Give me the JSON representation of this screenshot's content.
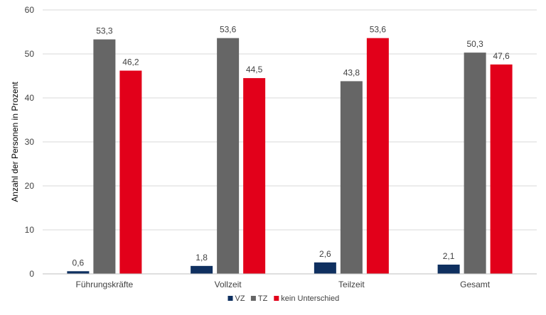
{
  "chart_data": {
    "type": "bar",
    "title": "",
    "xlabel": "",
    "ylabel": "Anzahl der Personen in Prozent",
    "ylim": [
      0,
      60
    ],
    "yticks": [
      "0",
      "10",
      "20",
      "30",
      "40",
      "50",
      "60"
    ],
    "grid": true,
    "legend_position": "bottom",
    "categories": [
      "Führungskräfte",
      "Vollzeit",
      "Teilzeit",
      "Gesamt"
    ],
    "series": [
      {
        "name": "VZ",
        "color": "#0f3060",
        "values": [
          0.6,
          1.8,
          2.6,
          2.1
        ],
        "labels": [
          "0,6",
          "1,8",
          "2,6",
          "2,1"
        ]
      },
      {
        "name": "TZ",
        "color": "#666666",
        "values": [
          53.3,
          53.6,
          43.8,
          50.3
        ],
        "labels": [
          "53,3",
          "53,6",
          "43,8",
          "50,3"
        ]
      },
      {
        "name": "kein Unterschied",
        "color": "#e2001a",
        "values": [
          46.2,
          44.5,
          53.6,
          47.6
        ],
        "labels": [
          "46,2",
          "44,5",
          "53,6",
          "47,6"
        ]
      }
    ]
  }
}
